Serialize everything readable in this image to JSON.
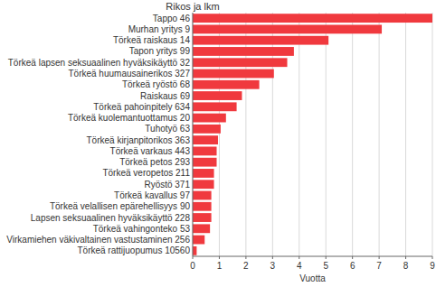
{
  "chart_data": {
    "type": "bar",
    "orientation": "horizontal",
    "title": "Rikos ja lkm",
    "x_label": "Vuotta",
    "categories": [
      "Tappo 46",
      "Murhan yritys 9",
      "Törkeä raiskaus 14",
      "Tapon yritys 99",
      "Törkeä lapsen seksuaalinen hyväksikäyttö 32",
      "Törkeä huumausainerikos 327",
      "Törkeä ryöstö 68",
      "Raiskaus 69",
      "Törkeä pahoinpitely 634",
      "Törkeä kuolemantuottamus 20",
      "Tuhotyö 63",
      "Törkeä kirjanpitorikos 363",
      "Törkeä varkaus 443",
      "Törkeä petos 293",
      "Törkeä veropetos 211",
      "Ryöstö 371",
      "Törkeä kavallus 97",
      "Törkeä velallisen epärehellisyys 90",
      "Lapsen seksuaalinen hyväksikäyttö 228",
      "Törkeä vahingonteko 53",
      "Virkamiehen väkivaltainen vastustaminen 256",
      "Törkeä rattijuopumus 10560"
    ],
    "values": [
      9.0,
      7.1,
      5.1,
      3.8,
      3.55,
      3.05,
      2.5,
      1.85,
      1.65,
      1.25,
      1.05,
      0.95,
      0.9,
      0.9,
      0.8,
      0.8,
      0.7,
      0.7,
      0.7,
      0.65,
      0.45,
      0.15
    ],
    "color": "#f0393e",
    "xlim": [
      0,
      9
    ],
    "xticks": [
      0,
      1,
      2,
      3,
      4,
      5,
      6,
      7,
      8,
      9
    ],
    "grid": true
  }
}
